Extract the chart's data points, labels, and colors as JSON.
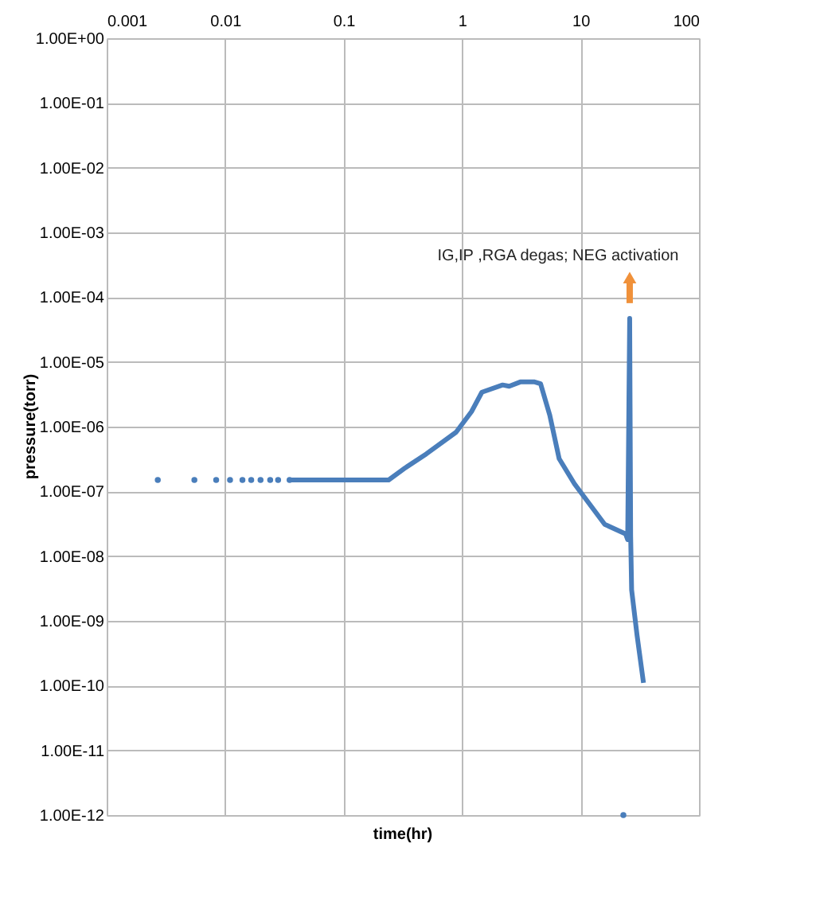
{
  "chart_data": {
    "type": "line",
    "xlabel": "time(hr)",
    "ylabel": "pressure(torr)",
    "log": "xy",
    "grid": true,
    "xlim": [
      0.001,
      100
    ],
    "xticks": [
      0.001,
      0.01,
      0.1,
      1,
      10,
      100
    ],
    "ylim": [
      1e-12,
      1
    ],
    "yticks": [
      {
        "value": 1,
        "label": "1.00E+00"
      },
      {
        "value": 0.1,
        "label": "1.00E-01"
      },
      {
        "value": 0.01,
        "label": "1.00E-02"
      },
      {
        "value": 0.001,
        "label": "1.00E-03"
      },
      {
        "value": 0.0001,
        "label": "1.00E-04"
      },
      {
        "value": 1e-05,
        "label": "1.00E-05"
      },
      {
        "value": 1e-06,
        "label": "1.00E-06"
      },
      {
        "value": 1e-07,
        "label": "1.00E-07"
      },
      {
        "value": 1e-08,
        "label": "1.00E-08"
      },
      {
        "value": 1e-09,
        "label": "1.00E-09"
      },
      {
        "value": 1e-10,
        "label": "1.00E-10"
      },
      {
        "value": 1e-11,
        "label": "1.00E-11"
      },
      {
        "value": 1e-12,
        "label": "1.00E-12"
      }
    ],
    "annotations": [
      {
        "text": "IG,IP ,RGA degas; NEG activation",
        "x": 26,
        "y": 0.0002
      }
    ],
    "series": [
      {
        "type": "scatter",
        "marker": "circle",
        "color": "#4a7ebb",
        "x": [
          0.0027,
          0.0055,
          0.0084,
          0.011,
          0.014,
          0.0166,
          0.0199,
          0.024,
          0.028,
          0.035,
          23
        ],
        "values": [
          1.5e-07,
          1.5e-07,
          1.5e-07,
          1.5e-07,
          1.5e-07,
          1.5e-07,
          1.5e-07,
          1.5e-07,
          1.5e-07,
          1.5e-07,
          1e-12
        ]
      },
      {
        "color": "#4a7ebb",
        "x": [
          0.035,
          0.1,
          0.24,
          0.33,
          0.5,
          0.89,
          1.2,
          1.47,
          2.2,
          2.5,
          3.1,
          4.1,
          4.6,
          5.5,
          6.6,
          8.9,
          16,
          24,
          25,
          26,
          26.5,
          27,
          30,
          34
        ],
        "values": [
          1.5e-07,
          1.5e-07,
          1.5e-07,
          2.3e-07,
          3.8e-07,
          8.2e-07,
          1.7e-06,
          3.4e-06,
          4.4e-06,
          4.2e-06,
          4.9e-06,
          4.9e-06,
          4.6e-06,
          1.5e-06,
          3.2e-07,
          1.3e-07,
          3.1e-08,
          2.2e-08,
          1.8e-08,
          4.7e-05,
          2e-08,
          3e-09,
          6e-10,
          1.1e-10
        ]
      }
    ]
  }
}
